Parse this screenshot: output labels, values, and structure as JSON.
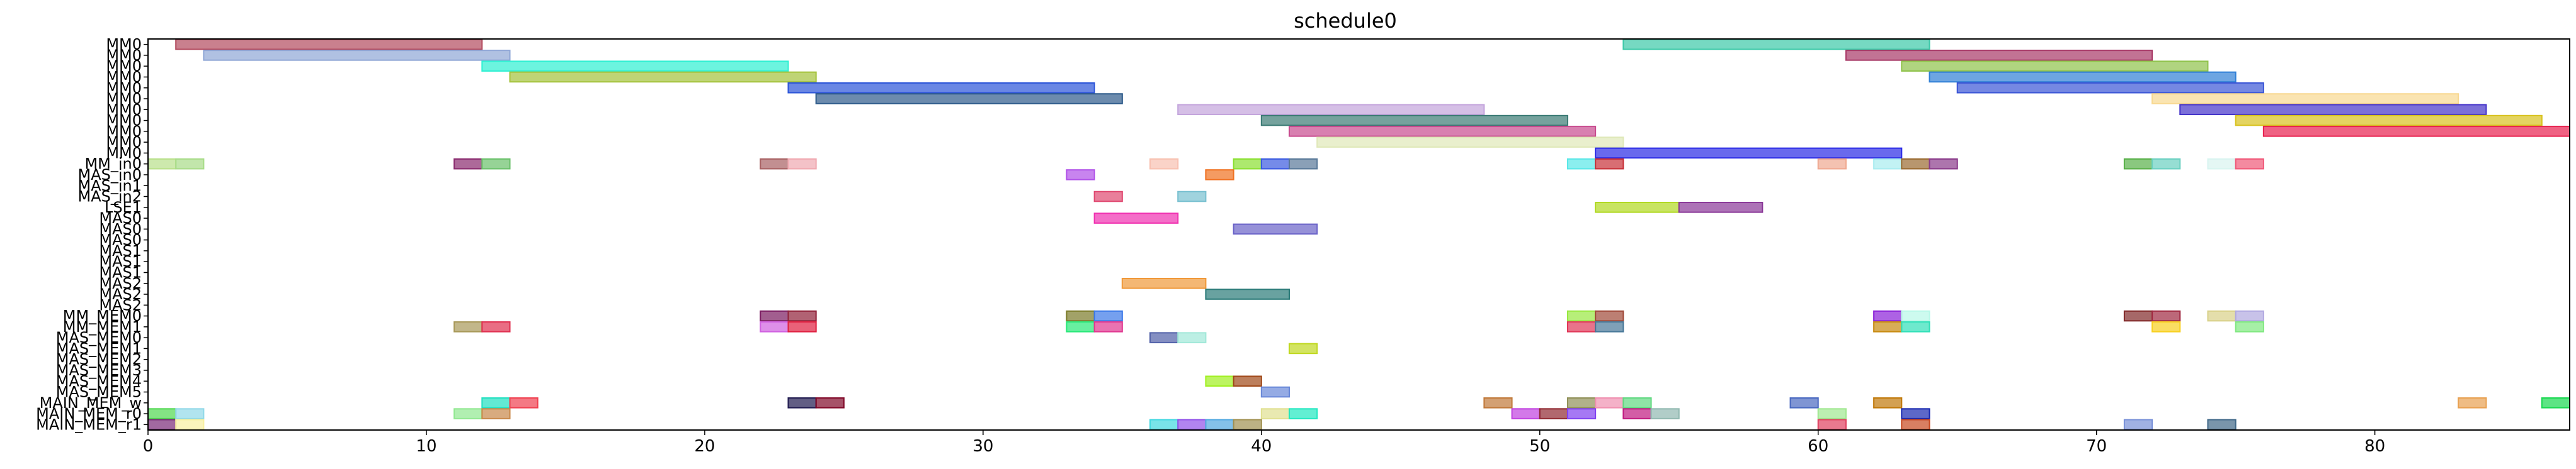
{
  "chart_data": {
    "type": "bar",
    "subtype": "gantt",
    "title": "schedule0",
    "xlabel": "",
    "ylabel": "",
    "xlim": [
      0,
      87
    ],
    "x_ticks": [
      0,
      10,
      20,
      30,
      40,
      50,
      60,
      70,
      80
    ],
    "grid": false,
    "categories": [
      "MM0",
      "MM0",
      "MM0",
      "MM0",
      "MM0",
      "MM0",
      "MM0",
      "MM0",
      "MM0",
      "MM0",
      "MM0",
      "MM_in0",
      "MAS_in0",
      "MAS_in1",
      "MAS_in2",
      "LSE1",
      "MAS0",
      "MAS0",
      "MAS0",
      "MAS1",
      "MAS1",
      "MAS1",
      "MAS2",
      "MAS2",
      "MAS2",
      "MM_MEM0",
      "MM_MEM1",
      "MAS_MEM0",
      "MAS_MEM1",
      "MAS_MEM2",
      "MAS_MEM3",
      "MAS_MEM4",
      "MAS_MEM5",
      "MAIN_MEM_w",
      "MAIN_MEM_r0",
      "MAIN_MEM_r1"
    ],
    "tasks": [
      {
        "row": 0,
        "start": 1,
        "end": 12,
        "color": "#b24a5e"
      },
      {
        "row": 0,
        "start": 53,
        "end": 64,
        "color": "#3cc9a8"
      },
      {
        "row": 1,
        "start": 2,
        "end": 13,
        "color": "#8fa6d6"
      },
      {
        "row": 1,
        "start": 61,
        "end": 72,
        "color": "#a83866"
      },
      {
        "row": 2,
        "start": 12,
        "end": 23,
        "color": "#2df0d2"
      },
      {
        "row": 2,
        "start": 63,
        "end": 74,
        "color": "#8fc24a"
      },
      {
        "row": 3,
        "start": 13,
        "end": 24,
        "color": "#a4c23a"
      },
      {
        "row": 3,
        "start": 64,
        "end": 75,
        "color": "#2f7fd6"
      },
      {
        "row": 4,
        "start": 23,
        "end": 34,
        "color": "#2b54d8"
      },
      {
        "row": 4,
        "start": 65,
        "end": 76,
        "color": "#3a55d6"
      },
      {
        "row": 5,
        "start": 24,
        "end": 35,
        "color": "#2d5a8a"
      },
      {
        "row": 5,
        "start": 72,
        "end": 83,
        "color": "#f8d890"
      },
      {
        "row": 6,
        "start": 37,
        "end": 48,
        "color": "#c3a4dc"
      },
      {
        "row": 6,
        "start": 73,
        "end": 84,
        "color": "#4433c9"
      },
      {
        "row": 7,
        "start": 40,
        "end": 51,
        "color": "#3a7a74"
      },
      {
        "row": 7,
        "start": 75,
        "end": 86,
        "color": "#d8c21e"
      },
      {
        "row": 8,
        "start": 41,
        "end": 52,
        "color": "#c84a8e"
      },
      {
        "row": 8,
        "start": 76,
        "end": 87,
        "color": "#e8204e"
      },
      {
        "row": 9,
        "start": 42,
        "end": 53,
        "color": "#dfe8b8"
      },
      {
        "row": 10,
        "start": 52,
        "end": 63,
        "color": "#2a2ae6"
      },
      {
        "row": 11,
        "start": 0,
        "end": 1,
        "color": "#b8e08a"
      },
      {
        "row": 11,
        "start": 1,
        "end": 2,
        "color": "#a8dc88"
      },
      {
        "row": 11,
        "start": 11,
        "end": 12,
        "color": "#8a2a6e"
      },
      {
        "row": 11,
        "start": 12,
        "end": 13,
        "color": "#6ac06a"
      },
      {
        "row": 11,
        "start": 22,
        "end": 23,
        "color": "#a86062"
      },
      {
        "row": 11,
        "start": 23,
        "end": 24,
        "color": "#f0a8b0"
      },
      {
        "row": 11,
        "start": 36,
        "end": 37,
        "color": "#f8c0b0"
      },
      {
        "row": 11,
        "start": 39,
        "end": 40,
        "color": "#8ae030"
      },
      {
        "row": 11,
        "start": 40,
        "end": 41,
        "color": "#3a5ae0"
      },
      {
        "row": 11,
        "start": 41,
        "end": 42,
        "color": "#587898"
      },
      {
        "row": 11,
        "start": 51,
        "end": 52,
        "color": "#5ae8e8"
      },
      {
        "row": 11,
        "start": 52,
        "end": 53,
        "color": "#c83038"
      },
      {
        "row": 11,
        "start": 60,
        "end": 61,
        "color": "#f0a890"
      },
      {
        "row": 11,
        "start": 62,
        "end": 63,
        "color": "#a8ecf0"
      },
      {
        "row": 11,
        "start": 63,
        "end": 64,
        "color": "#9a6a30"
      },
      {
        "row": 11,
        "start": 64,
        "end": 65,
        "color": "#8a3a8a"
      },
      {
        "row": 11,
        "start": 71,
        "end": 72,
        "color": "#58b048"
      },
      {
        "row": 11,
        "start": 72,
        "end": 73,
        "color": "#6ad0c0"
      },
      {
        "row": 11,
        "start": 74,
        "end": 75,
        "color": "#d8f4f0"
      },
      {
        "row": 11,
        "start": 75,
        "end": 76,
        "color": "#f05878"
      },
      {
        "row": 12,
        "start": 33,
        "end": 34,
        "color": "#b050e8"
      },
      {
        "row": 12,
        "start": 38,
        "end": 39,
        "color": "#f07020"
      },
      {
        "row": 14,
        "start": 34,
        "end": 35,
        "color": "#e04870"
      },
      {
        "row": 14,
        "start": 37,
        "end": 38,
        "color": "#78c0d0"
      },
      {
        "row": 15,
        "start": 52,
        "end": 55,
        "color": "#b0d820"
      },
      {
        "row": 15,
        "start": 55,
        "end": 58,
        "color": "#8a3898"
      },
      {
        "row": 16,
        "start": 34,
        "end": 37,
        "color": "#f030b0"
      },
      {
        "row": 17,
        "start": 39,
        "end": 42,
        "color": "#6a62c8"
      },
      {
        "row": 22,
        "start": 35,
        "end": 38,
        "color": "#f09838"
      },
      {
        "row": 23,
        "start": 38,
        "end": 41,
        "color": "#2a7a78"
      },
      {
        "row": 25,
        "start": 22,
        "end": 23,
        "color": "#7a1a60"
      },
      {
        "row": 25,
        "start": 23,
        "end": 24,
        "color": "#902038"
      },
      {
        "row": 25,
        "start": 33,
        "end": 34,
        "color": "#7a7a28"
      },
      {
        "row": 25,
        "start": 34,
        "end": 35,
        "color": "#3a78e8"
      },
      {
        "row": 25,
        "start": 51,
        "end": 52,
        "color": "#98e840"
      },
      {
        "row": 25,
        "start": 52,
        "end": 53,
        "color": "#a04838"
      },
      {
        "row": 25,
        "start": 62,
        "end": 63,
        "color": "#8a20d8"
      },
      {
        "row": 25,
        "start": 63,
        "end": 64,
        "color": "#b8f8e8"
      },
      {
        "row": 25,
        "start": 71,
        "end": 72,
        "color": "#802828"
      },
      {
        "row": 25,
        "start": 72,
        "end": 73,
        "color": "#a02840"
      },
      {
        "row": 25,
        "start": 74,
        "end": 75,
        "color": "#d8d088"
      },
      {
        "row": 25,
        "start": 75,
        "end": 76,
        "color": "#b0a8e0"
      },
      {
        "row": 26,
        "start": 11,
        "end": 12,
        "color": "#a89858"
      },
      {
        "row": 26,
        "start": 12,
        "end": 13,
        "color": "#e03050"
      },
      {
        "row": 26,
        "start": 22,
        "end": 23,
        "color": "#d060e0"
      },
      {
        "row": 26,
        "start": 23,
        "end": 24,
        "color": "#e02040"
      },
      {
        "row": 26,
        "start": 33,
        "end": 34,
        "color": "#28e878"
      },
      {
        "row": 26,
        "start": 34,
        "end": 35,
        "color": "#e03890"
      },
      {
        "row": 26,
        "start": 51,
        "end": 52,
        "color": "#e03858"
      },
      {
        "row": 26,
        "start": 52,
        "end": 53,
        "color": "#487898"
      },
      {
        "row": 26,
        "start": 62,
        "end": 63,
        "color": "#c88a10"
      },
      {
        "row": 26,
        "start": 63,
        "end": 64,
        "color": "#30e0b8"
      },
      {
        "row": 26,
        "start": 72,
        "end": 73,
        "color": "#f8d020"
      },
      {
        "row": 26,
        "start": 75,
        "end": 76,
        "color": "#80e880"
      },
      {
        "row": 27,
        "start": 36,
        "end": 37,
        "color": "#5060a8"
      },
      {
        "row": 27,
        "start": 37,
        "end": 38,
        "color": "#a0e8d8"
      },
      {
        "row": 28,
        "start": 41,
        "end": 42,
        "color": "#c0d820"
      },
      {
        "row": 31,
        "start": 38,
        "end": 39,
        "color": "#a0f020"
      },
      {
        "row": 31,
        "start": 39,
        "end": 40,
        "color": "#a04818"
      },
      {
        "row": 32,
        "start": 40,
        "end": 41,
        "color": "#6888d8"
      },
      {
        "row": 33,
        "start": 12,
        "end": 13,
        "color": "#20e0c0"
      },
      {
        "row": 33,
        "start": 13,
        "end": 14,
        "color": "#f04050"
      },
      {
        "row": 33,
        "start": 23,
        "end": 24,
        "color": "#201a50"
      },
      {
        "row": 33,
        "start": 24,
        "end": 25,
        "color": "#800828"
      },
      {
        "row": 33,
        "start": 48,
        "end": 49,
        "color": "#c07838"
      },
      {
        "row": 33,
        "start": 51,
        "end": 52,
        "color": "#909058"
      },
      {
        "row": 33,
        "start": 52,
        "end": 53,
        "color": "#f090b0"
      },
      {
        "row": 33,
        "start": 53,
        "end": 54,
        "color": "#60d880"
      },
      {
        "row": 33,
        "start": 59,
        "end": 60,
        "color": "#4868c0"
      },
      {
        "row": 33,
        "start": 62,
        "end": 63,
        "color": "#c07808"
      },
      {
        "row": 33,
        "start": 83,
        "end": 84,
        "color": "#e8a050"
      },
      {
        "row": 33,
        "start": 86,
        "end": 87,
        "color": "#18d850"
      },
      {
        "row": 34,
        "start": 0,
        "end": 1,
        "color": "#50d850"
      },
      {
        "row": 34,
        "start": 1,
        "end": 2,
        "color": "#90d8e8"
      },
      {
        "row": 34,
        "start": 11,
        "end": 12,
        "color": "#90e890"
      },
      {
        "row": 34,
        "start": 12,
        "end": 13,
        "color": "#c88848"
      },
      {
        "row": 34,
        "start": 40,
        "end": 41,
        "color": "#e0e090"
      },
      {
        "row": 34,
        "start": 41,
        "end": 42,
        "color": "#20e8c0"
      },
      {
        "row": 34,
        "start": 49,
        "end": 50,
        "color": "#c040e0"
      },
      {
        "row": 34,
        "start": 50,
        "end": 51,
        "color": "#902830"
      },
      {
        "row": 34,
        "start": 51,
        "end": 52,
        "color": "#8040f0"
      },
      {
        "row": 34,
        "start": 53,
        "end": 54,
        "color": "#c01880"
      },
      {
        "row": 34,
        "start": 54,
        "end": 55,
        "color": "#90b8b0"
      },
      {
        "row": 34,
        "start": 60,
        "end": 61,
        "color": "#a0e890"
      },
      {
        "row": 34,
        "start": 63,
        "end": 64,
        "color": "#1828b0"
      },
      {
        "row": 35,
        "start": 0,
        "end": 1,
        "color": "#7a2a78"
      },
      {
        "row": 35,
        "start": 1,
        "end": 2,
        "color": "#f8f0a0"
      },
      {
        "row": 35,
        "start": 36,
        "end": 37,
        "color": "#40d8e0"
      },
      {
        "row": 35,
        "start": 37,
        "end": 38,
        "color": "#9050e8"
      },
      {
        "row": 35,
        "start": 38,
        "end": 39,
        "color": "#50a8e0"
      },
      {
        "row": 35,
        "start": 39,
        "end": 40,
        "color": "#a09050"
      },
      {
        "row": 35,
        "start": 60,
        "end": 61,
        "color": "#e04060"
      },
      {
        "row": 35,
        "start": 63,
        "end": 64,
        "color": "#c84820"
      },
      {
        "row": 35,
        "start": 71,
        "end": 72,
        "color": "#7890d8"
      },
      {
        "row": 35,
        "start": 74,
        "end": 75,
        "color": "#406888"
      }
    ]
  }
}
